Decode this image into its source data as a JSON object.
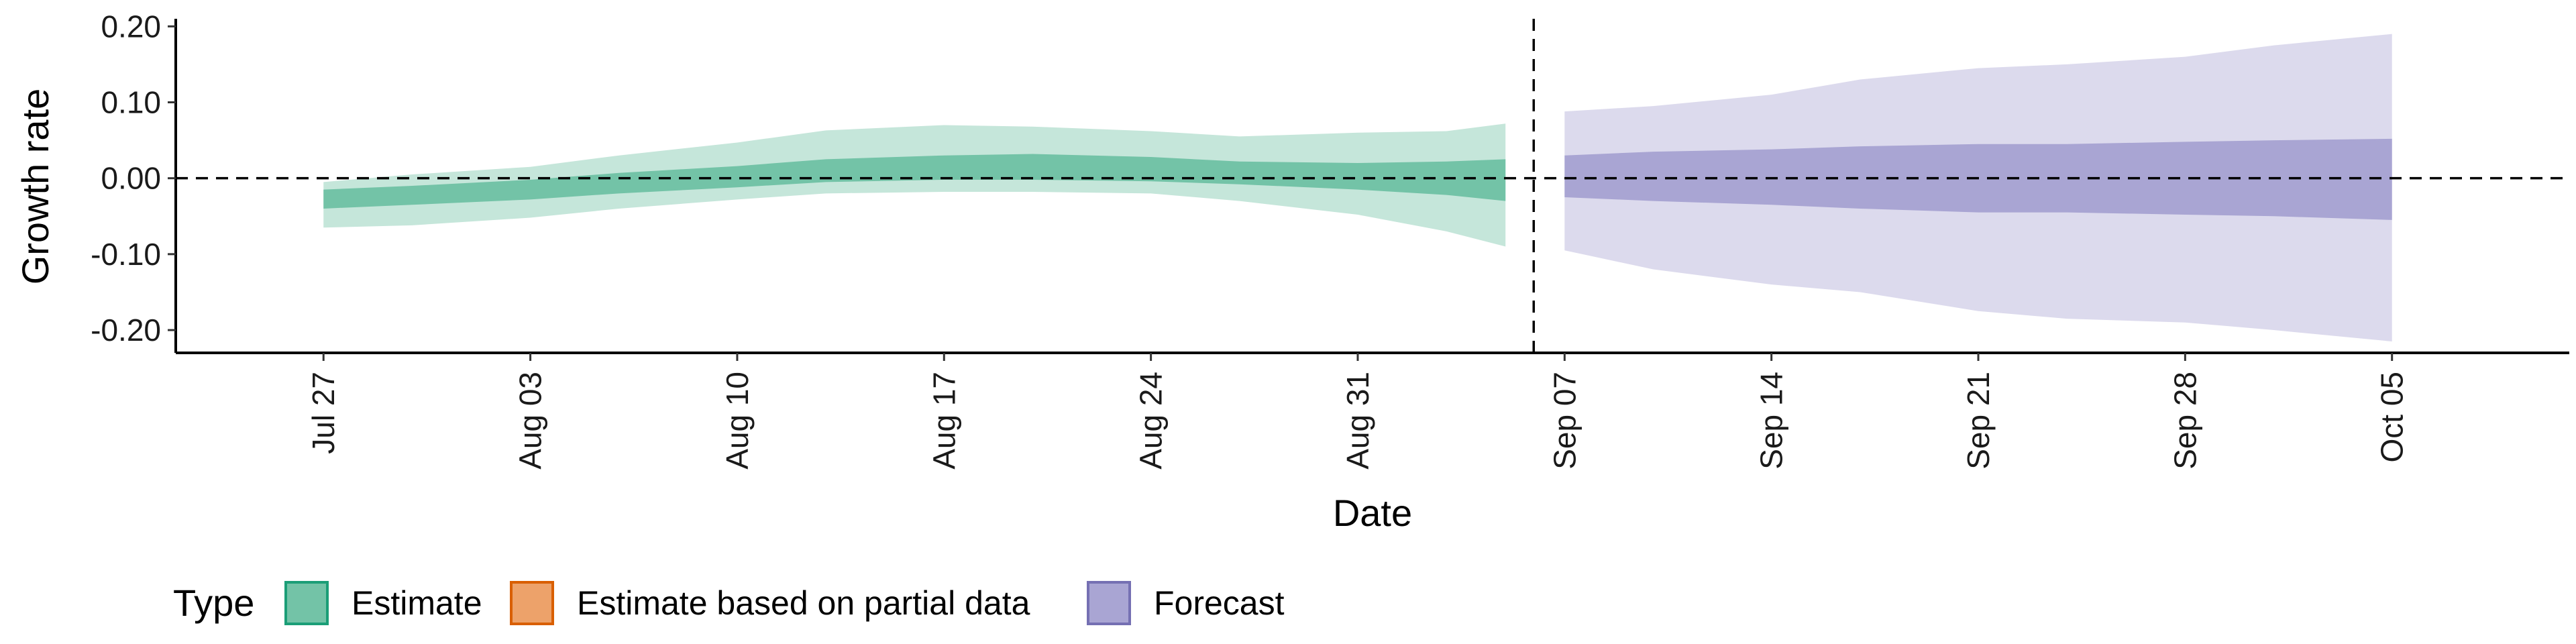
{
  "chart_data": {
    "type": "area",
    "xlabel": "Date",
    "ylabel": "Growth rate",
    "ylim": [
      -0.23,
      0.21
    ],
    "xlim": [
      "2020-07-22",
      "2020-10-11"
    ],
    "grid": false,
    "legend_position": "bottom-left",
    "reference_line_y": 0,
    "divider_date": "2020-09-06",
    "y_ticks": [
      {
        "value": 0.2,
        "label": "0.20"
      },
      {
        "value": 0.1,
        "label": "0.10"
      },
      {
        "value": 0.0,
        "label": "0.00"
      },
      {
        "value": -0.1,
        "label": "-0.10"
      },
      {
        "value": -0.2,
        "label": "-0.20"
      }
    ],
    "x_ticks": [
      {
        "date": "2020-07-27",
        "label": "Jul 27"
      },
      {
        "date": "2020-08-03",
        "label": "Aug 03"
      },
      {
        "date": "2020-08-10",
        "label": "Aug 10"
      },
      {
        "date": "2020-08-17",
        "label": "Aug 17"
      },
      {
        "date": "2020-08-24",
        "label": "Aug 24"
      },
      {
        "date": "2020-08-31",
        "label": "Aug 31"
      },
      {
        "date": "2020-09-07",
        "label": "Sep 07"
      },
      {
        "date": "2020-09-14",
        "label": "Sep 14"
      },
      {
        "date": "2020-09-21",
        "label": "Sep 21"
      },
      {
        "date": "2020-09-28",
        "label": "Sep 28"
      },
      {
        "date": "2020-10-05",
        "label": "Oct 05"
      }
    ],
    "legend": {
      "title": "Type",
      "entries": [
        {
          "label": "Estimate",
          "fill": "#73c3a7",
          "stroke": "#1b9e77"
        },
        {
          "label": "Estimate based on partial data",
          "fill": "#eda26a",
          "stroke": "#d95f02"
        },
        {
          "label": "Forecast",
          "fill": "#a9a5d3",
          "stroke": "#7570b3"
        }
      ]
    },
    "series": [
      {
        "type_label": "Estimate",
        "outer_color": "#c5e6da",
        "inner_color": "#73c3a7",
        "x": [
          "2020-07-27",
          "2020-07-30",
          "2020-08-03",
          "2020-08-06",
          "2020-08-10",
          "2020-08-13",
          "2020-08-17",
          "2020-08-20",
          "2020-08-24",
          "2020-08-27",
          "2020-08-31",
          "2020-09-03",
          "2020-09-05"
        ],
        "outer_lower": [
          -0.065,
          -0.062,
          -0.052,
          -0.04,
          -0.028,
          -0.02,
          -0.018,
          -0.018,
          -0.02,
          -0.03,
          -0.048,
          -0.07,
          -0.09
        ],
        "outer_upper": [
          -0.005,
          0.005,
          0.015,
          0.03,
          0.047,
          0.063,
          0.07,
          0.068,
          0.062,
          0.055,
          0.06,
          0.062,
          0.072
        ],
        "inner_lower": [
          -0.04,
          -0.035,
          -0.028,
          -0.02,
          -0.012,
          -0.005,
          -0.002,
          -0.002,
          -0.004,
          -0.008,
          -0.015,
          -0.022,
          -0.03
        ],
        "inner_upper": [
          -0.015,
          -0.01,
          -0.002,
          0.007,
          0.016,
          0.025,
          0.03,
          0.032,
          0.028,
          0.022,
          0.02,
          0.022,
          0.025
        ]
      },
      {
        "type_label": "Forecast",
        "outer_color": "#dcdaed",
        "inner_color": "#a9a5d3",
        "x": [
          "2020-09-07",
          "2020-09-10",
          "2020-09-14",
          "2020-09-17",
          "2020-09-21",
          "2020-09-24",
          "2020-09-28",
          "2020-10-01",
          "2020-10-05"
        ],
        "outer_lower": [
          -0.095,
          -0.12,
          -0.14,
          -0.15,
          -0.175,
          -0.185,
          -0.19,
          -0.2,
          -0.215
        ],
        "outer_upper": [
          0.088,
          0.095,
          0.11,
          0.13,
          0.145,
          0.15,
          0.16,
          0.175,
          0.19
        ],
        "inner_lower": [
          -0.025,
          -0.03,
          -0.035,
          -0.04,
          -0.045,
          -0.045,
          -0.048,
          -0.05,
          -0.055
        ],
        "inner_upper": [
          0.03,
          0.035,
          0.038,
          0.042,
          0.045,
          0.045,
          0.048,
          0.05,
          0.052
        ]
      }
    ]
  }
}
